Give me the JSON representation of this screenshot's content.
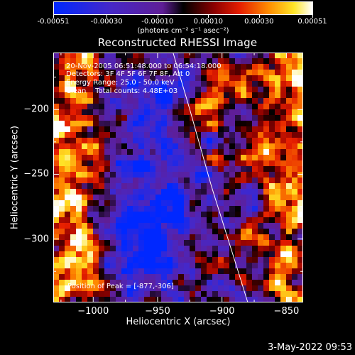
{
  "colorbar": {
    "tick_labels": [
      "-0.00051",
      "-0.00030",
      "-0.00010",
      "0.00010",
      "0.00030",
      "0.00051"
    ],
    "tick_values": [
      -0.00051,
      -0.0003,
      -0.0001,
      0.0001,
      0.0003,
      0.00051
    ],
    "range": [
      -0.00051,
      0.00051
    ],
    "units": "(photons cm⁻² s⁻¹ asec⁻²)"
  },
  "chart_data": {
    "type": "heatmap",
    "title": "Reconstructed RHESSI Image",
    "xlabel": "Heliocentric X (arcsec)",
    "ylabel": "Heliocentric Y (arcsec)",
    "xlim": [
      -1031,
      -837
    ],
    "ylim": [
      -349,
      -156
    ],
    "xticks": [
      -1000,
      -950,
      -900,
      -850
    ],
    "yticks": [
      -200,
      -250,
      -300
    ],
    "xtick_labels": [
      "−1000",
      "−950",
      "−900",
      "−850"
    ],
    "ytick_labels": [
      "−200",
      "−250",
      "−300"
    ],
    "colormap": "rhessi_blue_black_red_yellow_white",
    "limb_line": [
      [
        -938,
        -156
      ],
      [
        -925,
        -200
      ],
      [
        -908,
        -260
      ],
      [
        -889,
        -320
      ],
      [
        -880,
        -349
      ]
    ],
    "peak": [
      -877,
      -306
    ],
    "annotations": [
      "20-Nov-2005 06:51:48.000 to 06:54:18.000",
      "Detectors: 3F 4F 5F 6F 7F 8F, Att 0",
      "Energy Range: 25.0 - 50.0 keV",
      "Clean    Total counts: 4.48E+03"
    ],
    "peak_label": "Position of Peak = [-877,-306]"
  },
  "timestamp": "3-May-2022 09:53",
  "colors": {
    "background": "#000000",
    "foreground": "#ffffff"
  }
}
